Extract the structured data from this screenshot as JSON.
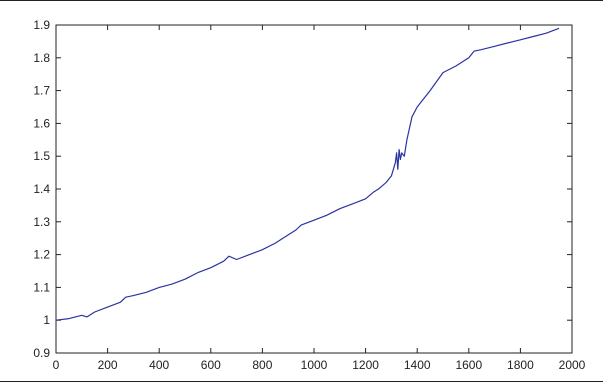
{
  "chart_data": {
    "type": "line",
    "title": "",
    "xlabel": "",
    "ylabel": "",
    "xlim": [
      0,
      2000
    ],
    "ylim": [
      0.9,
      1.9
    ],
    "x_ticks": [
      0,
      200,
      400,
      600,
      800,
      1000,
      1200,
      1400,
      1600,
      1800,
      2000
    ],
    "y_ticks": [
      0.9,
      1,
      1.1,
      1.2,
      1.3,
      1.4,
      1.5,
      1.6,
      1.7,
      1.8,
      1.9
    ],
    "x_tick_labels": [
      "0",
      "200",
      "400",
      "600",
      "800",
      "1000",
      "1200",
      "1400",
      "1600",
      "1800",
      "2000"
    ],
    "y_tick_labels": [
      "0.9",
      "1",
      "1.1",
      "1.2",
      "1.3",
      "1.4",
      "1.5",
      "1.6",
      "1.7",
      "1.8",
      "1.9"
    ],
    "grid": false,
    "legend": false,
    "colors": {
      "line": "#2b34a0",
      "axes": "#222222"
    },
    "series": [
      {
        "x": [
          0,
          50,
          100,
          120,
          150,
          200,
          250,
          270,
          300,
          350,
          400,
          450,
          500,
          550,
          600,
          650,
          670,
          700,
          750,
          800,
          850,
          900,
          930,
          950,
          1000,
          1050,
          1100,
          1150,
          1200,
          1230,
          1250,
          1280,
          1300,
          1315,
          1320,
          1325,
          1330,
          1335,
          1340,
          1350,
          1360,
          1380,
          1400,
          1450,
          1500,
          1550,
          1600,
          1620,
          1650,
          1700,
          1750,
          1800,
          1850,
          1900,
          1950
        ],
        "y": [
          1.0,
          1.005,
          1.015,
          1.01,
          1.025,
          1.04,
          1.055,
          1.07,
          1.075,
          1.085,
          1.1,
          1.11,
          1.125,
          1.145,
          1.16,
          1.18,
          1.195,
          1.185,
          1.2,
          1.215,
          1.235,
          1.26,
          1.275,
          1.29,
          1.305,
          1.32,
          1.34,
          1.355,
          1.37,
          1.39,
          1.4,
          1.42,
          1.44,
          1.48,
          1.51,
          1.46,
          1.52,
          1.49,
          1.51,
          1.5,
          1.55,
          1.62,
          1.65,
          1.7,
          1.755,
          1.775,
          1.8,
          1.82,
          1.825,
          1.835,
          1.845,
          1.855,
          1.865,
          1.875,
          1.89
        ]
      }
    ]
  }
}
